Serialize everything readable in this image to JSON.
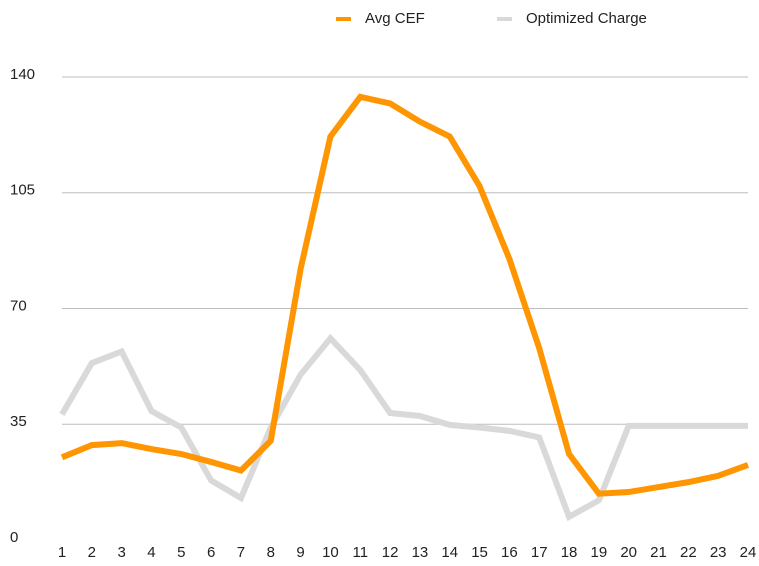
{
  "chart_data": {
    "type": "line",
    "categories": [
      1,
      2,
      3,
      4,
      5,
      6,
      7,
      8,
      9,
      10,
      11,
      12,
      13,
      14,
      15,
      16,
      17,
      18,
      19,
      20,
      21,
      22,
      23,
      24
    ],
    "series": [
      {
        "name": "Avg CEF",
        "color": "#ff9500",
        "values": [
          25,
          28.7,
          29.3,
          27.5,
          26,
          23.6,
          21,
          30,
          82,
          122,
          134,
          132,
          126.5,
          122,
          107,
          85,
          58,
          26,
          14,
          14.5,
          16,
          17.5,
          19.4,
          22.7
        ]
      },
      {
        "name": "Optimized Charge",
        "color": "#d9d9d9",
        "values": [
          38,
          53.5,
          57,
          39,
          34,
          18,
          12.7,
          34,
          50,
          61,
          51.4,
          38.4,
          37.5,
          34.8,
          34,
          33,
          31,
          7,
          12,
          34.5,
          34.5,
          34.5,
          34.5,
          34.5
        ]
      }
    ],
    "ylim": [
      0,
      140
    ],
    "yticks": [
      0,
      35,
      70,
      105,
      140
    ],
    "grid": true,
    "legend": "top"
  }
}
